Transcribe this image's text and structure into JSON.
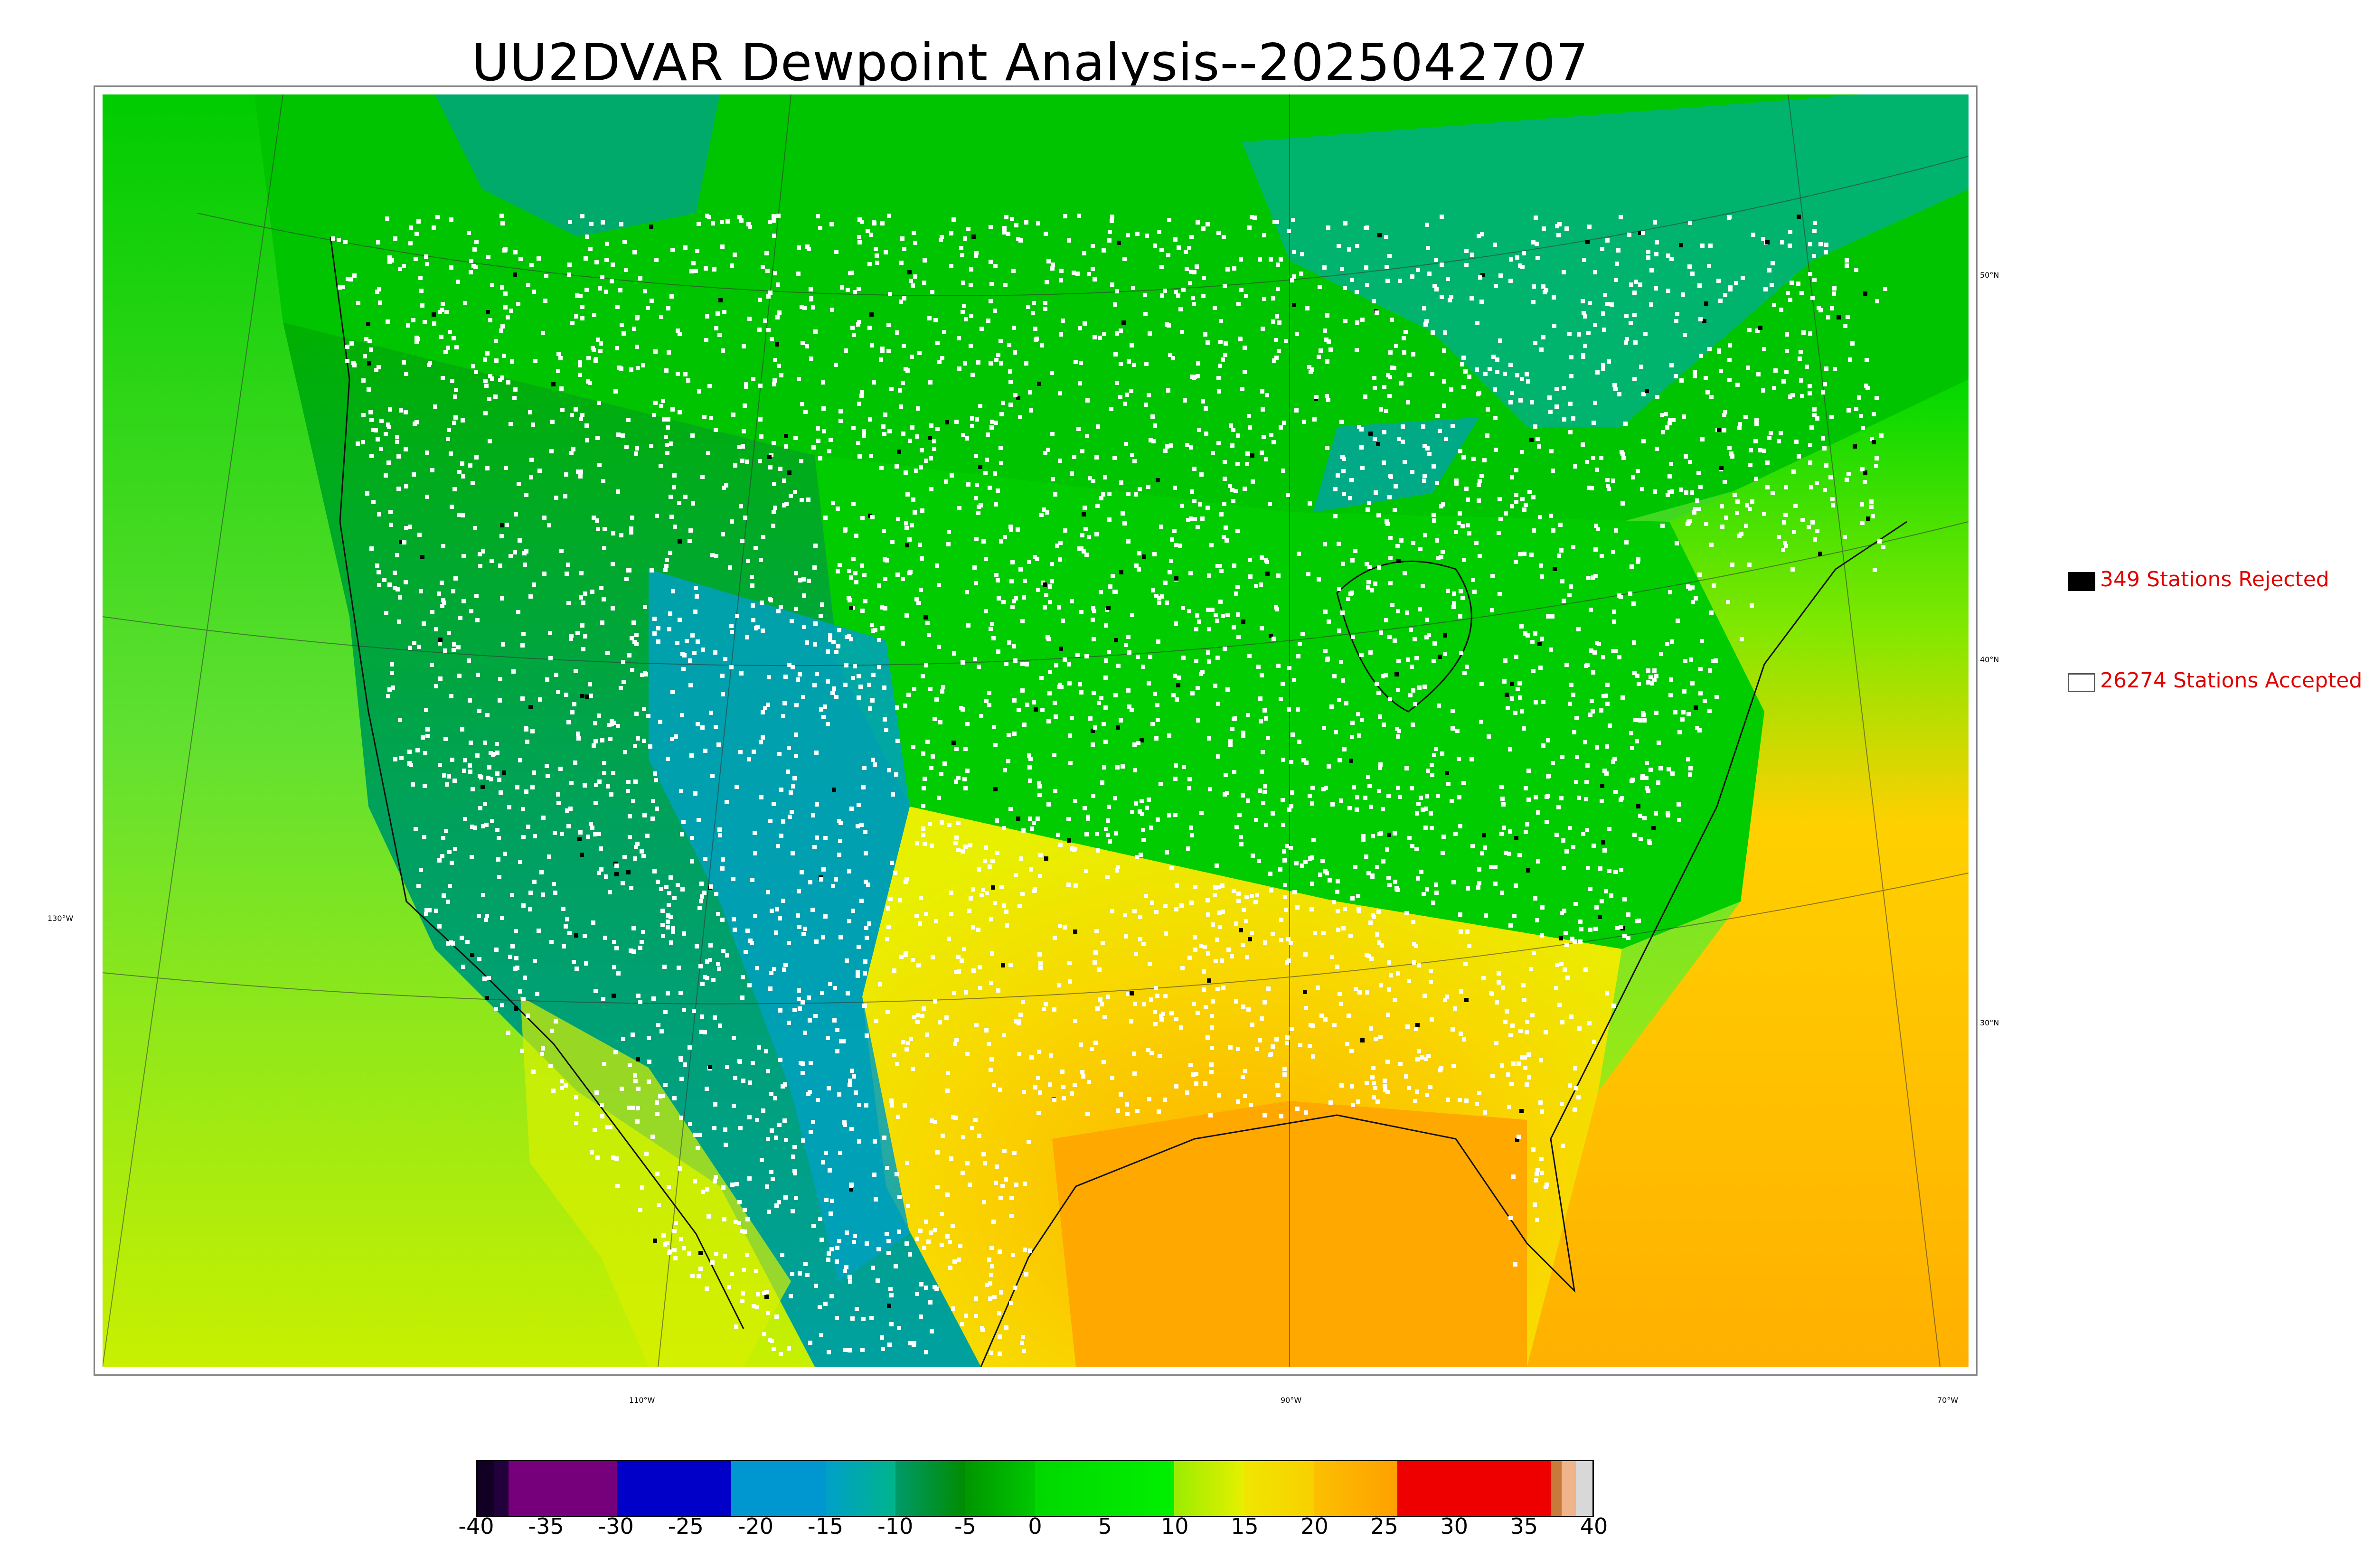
{
  "title": "UU2DVAR Dewpoint Analysis--2025042707",
  "legend": {
    "rejected": {
      "label": "349 Stations Rejected",
      "swatch_color": "#000000"
    },
    "accepted": {
      "label": "26274 Stations Accepted",
      "swatch_color": "#ffffff"
    }
  },
  "axis_labels": {
    "latitudes": [
      "50°N",
      "40°N",
      "30°N"
    ],
    "longitudes": [
      "130°W",
      "110°W",
      "90°W",
      "70°W"
    ]
  },
  "colorbar": {
    "ticks": [
      "-40",
      "-35",
      "-30",
      "-25",
      "-20",
      "-15",
      "-10",
      "-5",
      "0",
      "5",
      "10",
      "15",
      "20",
      "25",
      "30",
      "35",
      "40"
    ],
    "range": [
      -40,
      40
    ],
    "segments": [
      {
        "from": -40,
        "to": -38.8,
        "color": "#120024"
      },
      {
        "from": -38.8,
        "to": -37.8,
        "color": "#22003c"
      },
      {
        "from": -37.8,
        "to": -30,
        "color": "#76007c"
      },
      {
        "from": -30,
        "to": -21.8,
        "color": "#0000c8"
      },
      {
        "from": -21.8,
        "to": -15,
        "color": "#0096d0"
      },
      {
        "from": -15,
        "to": -10,
        "color": "#00a0c8",
        "gradient_to": "#00b48c"
      },
      {
        "from": -10,
        "to": -5,
        "color": "#009a6a",
        "gradient_to": "#008c00"
      },
      {
        "from": -5,
        "to": 0,
        "color": "#009600",
        "gradient_to": "#00c800"
      },
      {
        "from": 0,
        "to": 10,
        "color": "#00d800",
        "gradient_to": "#00f000"
      },
      {
        "from": 10,
        "to": 15,
        "color": "#9aec00",
        "gradient_to": "#e6f000"
      },
      {
        "from": 15,
        "to": 20,
        "color": "#f0e600",
        "gradient_to": "#f8d000"
      },
      {
        "from": 20,
        "to": 26,
        "color": "#fcc000",
        "gradient_to": "#ffa000"
      },
      {
        "from": 26,
        "to": 37,
        "color": "#ee0000"
      },
      {
        "from": 37,
        "to": 37.8,
        "color": "#c87a3a"
      },
      {
        "from": 37.8,
        "to": 38.8,
        "color": "#f0b48a"
      },
      {
        "from": 38.8,
        "to": 40,
        "color": "#d8d8d8"
      }
    ]
  },
  "colors": {
    "ocean_west": "#54e02a",
    "ocean_southeast": "#ffb000",
    "gulf": "#ffa800",
    "land_west_dry": "#00a08c",
    "land_northern_plains": "#00a000",
    "canada": "#00c000",
    "east": "#00c800",
    "south": "#f0e000",
    "station_accepted": "#ffffff",
    "station_rejected": "#000000"
  }
}
